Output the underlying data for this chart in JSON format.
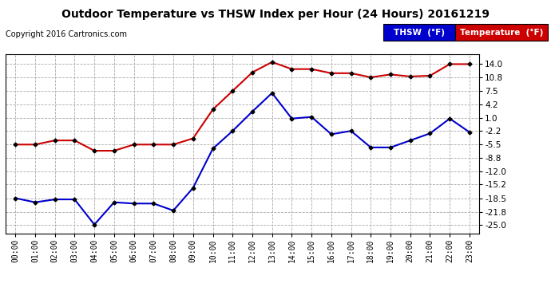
{
  "title": "Outdoor Temperature vs THSW Index per Hour (24 Hours) 20161219",
  "copyright": "Copyright 2016 Cartronics.com",
  "x_labels": [
    "00:00",
    "01:00",
    "02:00",
    "03:00",
    "04:00",
    "05:00",
    "06:00",
    "07:00",
    "08:00",
    "09:00",
    "10:00",
    "11:00",
    "12:00",
    "13:00",
    "14:00",
    "15:00",
    "16:00",
    "17:00",
    "18:00",
    "19:00",
    "20:00",
    "21:00",
    "22:00",
    "23:00"
  ],
  "thsw_values": [
    -18.5,
    -19.5,
    -18.8,
    -18.8,
    -24.9,
    -19.5,
    -19.8,
    -19.8,
    -21.5,
    -16.0,
    -6.5,
    -2.2,
    2.5,
    7.0,
    0.8,
    1.2,
    -3.0,
    -2.2,
    -6.2,
    -6.2,
    -4.5,
    -2.8,
    0.8,
    -2.5
  ],
  "temp_values": [
    -5.5,
    -5.5,
    -4.5,
    -4.5,
    -7.0,
    -7.0,
    -5.5,
    -5.5,
    -5.5,
    -4.0,
    3.0,
    7.5,
    12.0,
    14.5,
    12.8,
    12.8,
    11.8,
    11.8,
    10.8,
    11.5,
    11.0,
    11.2,
    14.0,
    14.0
  ],
  "thsw_color": "#0000cc",
  "temp_color": "#cc0000",
  "background_color": "#ffffff",
  "grid_color": "#aaaaaa",
  "yticks": [
    14.0,
    10.8,
    7.5,
    4.2,
    1.0,
    -2.2,
    -5.5,
    -8.8,
    -12.0,
    -15.2,
    -18.5,
    -21.8,
    -25.0
  ],
  "ylim": [
    -27.0,
    16.5
  ],
  "legend_thsw_bg": "#0000cc",
  "legend_temp_bg": "#cc0000",
  "legend_thsw_label": "THSW  (°F)",
  "legend_temp_label": "Temperature  (°F)"
}
